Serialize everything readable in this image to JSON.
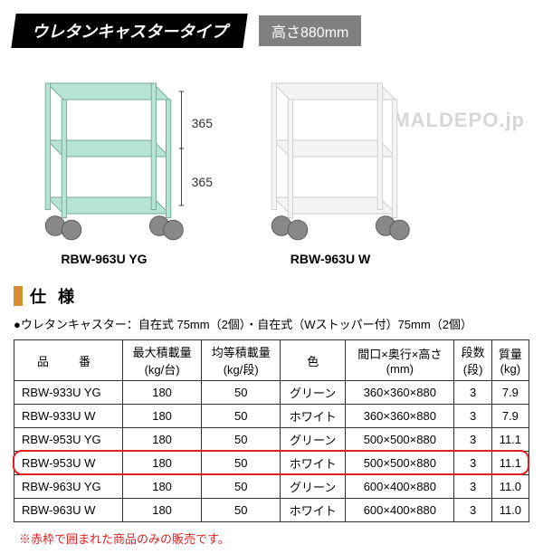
{
  "header": {
    "title": "ウレタンキャスタータイプ",
    "height_label": "高さ880mm"
  },
  "products": [
    {
      "label": "RBW-963U YG",
      "color": "#b8e4d4",
      "dim1": "365",
      "dim2": "365"
    },
    {
      "label": "RBW-963U W",
      "color": "#f2f2f2"
    }
  ],
  "watermark": "MALDEPO.jp",
  "spec": {
    "title": "仕 様",
    "note": "●ウレタンキャスター：自在式 75mm（2個）・自在式（Wストッパー付）75mm（2個）"
  },
  "table": {
    "columns": [
      "品　番",
      "最大積載量\n(kg/台)",
      "均等積載量\n(kg/段)",
      "色",
      "間口×奥行×高さ\n(mm)",
      "段数\n(段)",
      "質量\n(kg)"
    ],
    "rows": [
      [
        "RBW-933U YG",
        "180",
        "50",
        "グリーン",
        "360×360×880",
        "3",
        "7.9"
      ],
      [
        "RBW-933U W",
        "180",
        "50",
        "ホワイト",
        "360×360×880",
        "3",
        "7.9"
      ],
      [
        "RBW-953U YG",
        "180",
        "50",
        "グリーン",
        "500×500×880",
        "3",
        "11.1"
      ],
      [
        "RBW-953U W",
        "180",
        "50",
        "ホワイト",
        "500×500×880",
        "3",
        "11.1"
      ],
      [
        "RBW-963U YG",
        "180",
        "50",
        "グリーン",
        "600×400×880",
        "3",
        "11.0"
      ],
      [
        "RBW-963U W",
        "180",
        "50",
        "ホワイト",
        "600×400×880",
        "3",
        "11.0"
      ]
    ],
    "highlight_row_index": 3,
    "highlight_color": "#e02020"
  },
  "footer_note": "※赤枠で囲まれた商品のみの販売です。"
}
